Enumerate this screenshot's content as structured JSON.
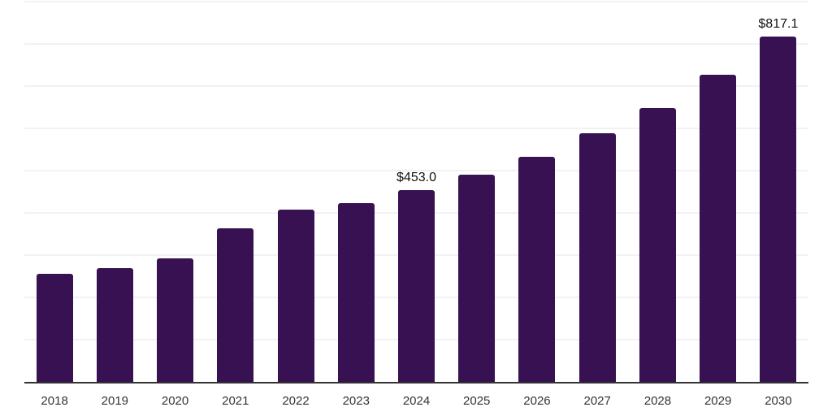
{
  "chart_data": {
    "type": "bar",
    "title": "",
    "xlabel": "",
    "ylabel": "",
    "categories": [
      "2018",
      "2019",
      "2020",
      "2021",
      "2022",
      "2023",
      "2024",
      "2025",
      "2026",
      "2027",
      "2028",
      "2029",
      "2030"
    ],
    "values": [
      256,
      270,
      292,
      364,
      408,
      424,
      453.0,
      490,
      532,
      588,
      648,
      727,
      817.1
    ],
    "value_labels": [
      "",
      "",
      "",
      "",
      "",
      "",
      "$453.0",
      "",
      "",
      "",
      "",
      "",
      "$817.1"
    ],
    "ylim": [
      0,
      900
    ],
    "grid_step": 100,
    "legend": "none",
    "y_tick_labels_visible": false,
    "colors": {
      "bar": "#371152",
      "grid_line": "#f2f2f2",
      "axis_line": "#333333",
      "category_label": "#333333",
      "value_label": "#111111",
      "background": "#ffffff"
    }
  }
}
